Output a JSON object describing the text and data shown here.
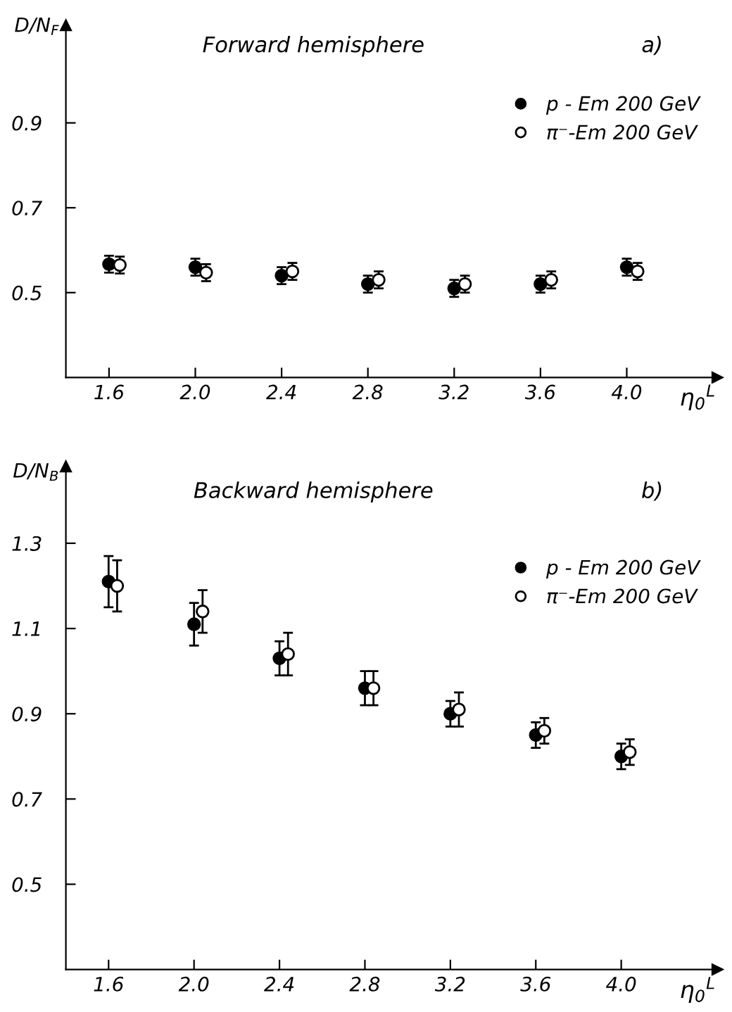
{
  "chart_data": [
    {
      "type": "scatter",
      "title": "Forward hemisphere",
      "xlabel": "η$_{0}$$^{L}$",
      "ylabel": "D/N$_{F}$",
      "annotations": [
        "a)"
      ],
      "xlim": [
        1.4,
        4.42
      ],
      "xticks": [
        {
          "value": 1.6,
          "label": "1.6"
        },
        {
          "value": 2.0,
          "label": "2.0"
        },
        {
          "value": 2.4,
          "label": "2.4"
        },
        {
          "value": 2.8,
          "label": "2.8"
        },
        {
          "value": 3.2,
          "label": "3.2"
        },
        {
          "value": 3.6,
          "label": "3.6"
        },
        {
          "value": 4.0,
          "label": "4.0"
        }
      ],
      "ylim": [
        0.3,
        1.13
      ],
      "yticks": [
        0.5,
        0.7,
        0.9
      ],
      "grid": false,
      "legend": "top right",
      "marker": "circle",
      "series": [
        {
          "name": "p - Em 200 GeV",
          "color": "#000000",
          "x": [
            1.6,
            2.0,
            2.4,
            2.8,
            3.2,
            3.6,
            4.0
          ],
          "values": [
            0.567,
            0.56,
            0.54,
            0.52,
            0.51,
            0.52,
            0.56
          ],
          "errors": [
            0.02,
            0.02,
            0.02,
            0.02,
            0.02,
            0.02,
            0.02
          ]
        },
        {
          "name": "π⁻-Em 200 GeV",
          "color": "#ffffff",
          "x": [
            1.65,
            2.05,
            2.45,
            2.85,
            3.25,
            3.65,
            4.05
          ],
          "values": [
            0.565,
            0.547,
            0.55,
            0.53,
            0.52,
            0.53,
            0.55
          ],
          "errors": [
            0.02,
            0.02,
            0.02,
            0.02,
            0.02,
            0.02,
            0.02
          ]
        }
      ]
    },
    {
      "type": "scatter",
      "title": "Backward hemisphere",
      "xlabel": "η$_{0}$$^{L}$",
      "ylabel": "D/N$_{B}$",
      "annotations": [
        "b)"
      ],
      "xlim": [
        1.4,
        4.45
      ],
      "xticks": [
        {
          "value": 1.6,
          "label": "1.6"
        },
        {
          "value": 2.0,
          "label": "2.0"
        },
        {
          "value": 2.4,
          "label": "2.4"
        },
        {
          "value": 2.8,
          "label": "2.8"
        },
        {
          "value": 3.2,
          "label": "3.2"
        },
        {
          "value": 3.6,
          "label": "3.6"
        },
        {
          "value": 4.0,
          "label": "4.0"
        }
      ],
      "ylim": [
        0.3,
        1.48
      ],
      "yticks": [
        0.5,
        0.7,
        0.9,
        1.1,
        1.3
      ],
      "grid": false,
      "legend": "top right",
      "marker": "circle",
      "series": [
        {
          "name": "p - Em 200 GeV",
          "color": "#000000",
          "x": [
            1.6,
            2.0,
            2.4,
            2.8,
            3.2,
            3.6,
            4.0
          ],
          "values": [
            1.21,
            1.11,
            1.03,
            0.96,
            0.9,
            0.85,
            0.8
          ],
          "errors": [
            0.06,
            0.05,
            0.04,
            0.04,
            0.03,
            0.03,
            0.03
          ]
        },
        {
          "name": "π⁻-Em 200 GeV",
          "color": "#ffffff",
          "x": [
            1.64,
            2.04,
            2.44,
            2.84,
            3.24,
            3.64,
            4.04
          ],
          "values": [
            1.2,
            1.14,
            1.04,
            0.96,
            0.91,
            0.86,
            0.81
          ],
          "errors": [
            0.06,
            0.05,
            0.05,
            0.04,
            0.04,
            0.03,
            0.03
          ]
        }
      ]
    }
  ]
}
